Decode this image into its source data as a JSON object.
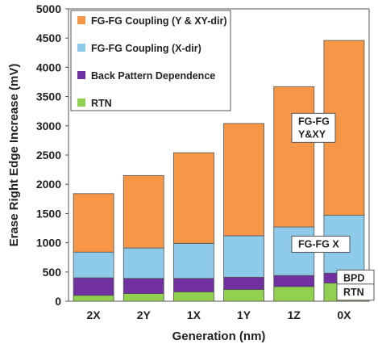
{
  "chart_data": {
    "type": "bar",
    "stacked": true,
    "categories": [
      "2X",
      "2Y",
      "1X",
      "1Y",
      "1Z",
      "0X"
    ],
    "series": [
      {
        "name": "RTN",
        "color": "#92d050",
        "values": [
          100,
          130,
          160,
          200,
          250,
          310
        ]
      },
      {
        "name": "Back Pattern Dependence",
        "color": "#7030a0",
        "values": [
          300,
          260,
          230,
          210,
          190,
          170
        ]
      },
      {
        "name": "FG-FG Coupling (X-dir)",
        "color": "#8ecae9",
        "values": [
          440,
          520,
          600,
          710,
          830,
          990
        ]
      },
      {
        "name": "FG-FG Coupling (Y & XY-dir)",
        "color": "#f79646",
        "values": [
          1000,
          1240,
          1550,
          1920,
          2400,
          2990
        ]
      }
    ],
    "legend_order": [
      "FG-FG Coupling (Y & XY-dir)",
      "FG-FG Coupling (X-dir)",
      "Back Pattern Dependence",
      "RTN"
    ],
    "legend_placement": "top-left",
    "xlabel": "Generation (nm)",
    "ylabel": "Erase Right Edge Increase (mV)",
    "ylim": [
      0,
      5000
    ],
    "yticks": [
      0,
      500,
      1000,
      1500,
      2000,
      2500,
      3000,
      3500,
      4000,
      4500,
      5000
    ],
    "grid": false,
    "annotations": [
      {
        "text": "FG-FG\nY&XY",
        "series": "FG-FG Coupling (Y & XY-dir)"
      },
      {
        "text": "FG-FG X",
        "series": "FG-FG Coupling (X-dir)"
      },
      {
        "text": "BPD",
        "series": "Back Pattern Dependence"
      },
      {
        "text": "RTN",
        "series": "RTN"
      }
    ]
  }
}
